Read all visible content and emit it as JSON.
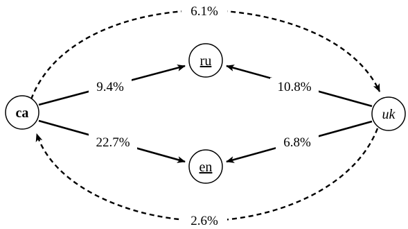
{
  "nodes": {
    "ca": "ca",
    "ru": "ru",
    "en": "en",
    "uk": "uk"
  },
  "edges": {
    "ca_to_ru": "9.4%",
    "uk_to_ru": "10.8%",
    "ca_to_en": "22.7%",
    "uk_to_en": "6.8%",
    "ca_to_uk": "6.1%",
    "uk_to_ca": "2.6%"
  },
  "colors": {
    "stroke": "#000000",
    "background": "#ffffff"
  }
}
